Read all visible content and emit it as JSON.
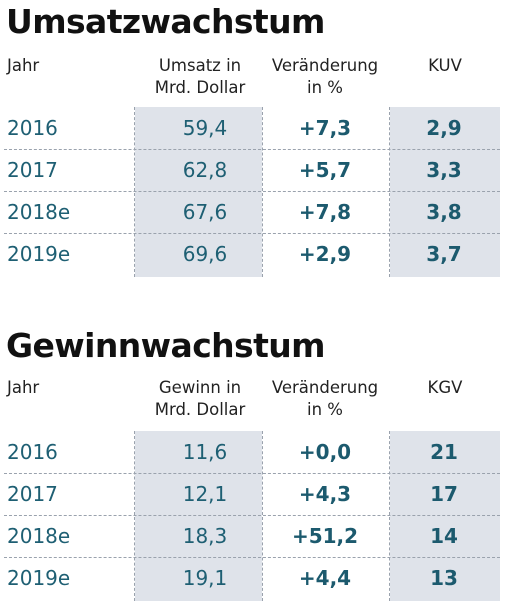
{
  "sections": [
    {
      "title": "Umsatzwachstum",
      "headers": {
        "year": "Jahr",
        "value_line1": "Umsatz in",
        "value_line2": "Mrd. Dollar",
        "change_line1": "Veränderung",
        "change_line2": "in %",
        "ratio": "KUV"
      },
      "rows": [
        {
          "year": "2016",
          "value": "59,4",
          "change": "+7,3",
          "ratio": "2,9"
        },
        {
          "year": "2017",
          "value": "62,8",
          "change": "+5,7",
          "ratio": "3,3"
        },
        {
          "year": "2018e",
          "value": "67,6",
          "change": "+7,8",
          "ratio": "3,8"
        },
        {
          "year": "2019e",
          "value": "69,6",
          "change": "+2,9",
          "ratio": "3,7"
        }
      ]
    },
    {
      "title": "Gewinnwachstum",
      "headers": {
        "year": "Jahr",
        "value_line1": "Gewinn in",
        "value_line2": "Mrd. Dollar",
        "change_line1": "Veränderung",
        "change_line2": "in %",
        "ratio": "KGV"
      },
      "rows": [
        {
          "year": "2016",
          "value": "11,6",
          "change": "+0,0",
          "ratio": "21"
        },
        {
          "year": "2017",
          "value": "12,1",
          "change": "+4,3",
          "ratio": "17"
        },
        {
          "year": "2018e",
          "value": "18,3",
          "change": "+51,2",
          "ratio": "14"
        },
        {
          "year": "2019e",
          "value": "19,1",
          "change": "+4,4",
          "ratio": "13"
        }
      ]
    }
  ],
  "colors": {
    "shade": "#dfe3ea",
    "value_text": "#1e5f73",
    "dash": "#9aa2ad"
  }
}
